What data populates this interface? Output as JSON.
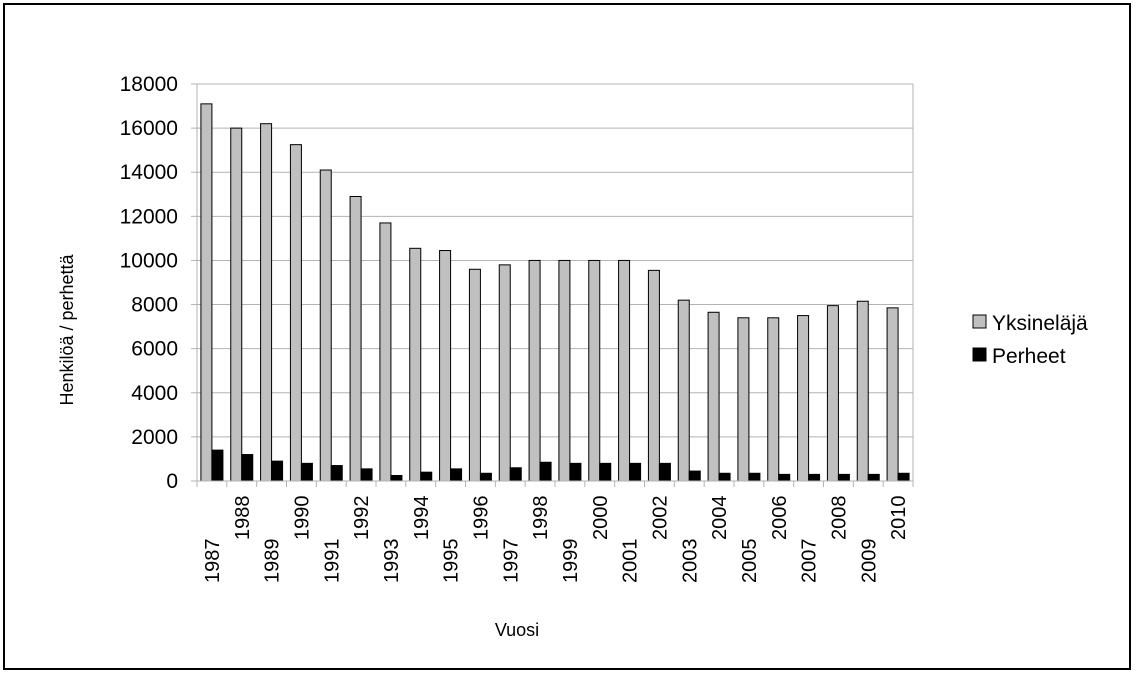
{
  "chart_data": {
    "type": "bar",
    "title": "",
    "xlabel": "Vuosi",
    "ylabel": "Henkilöä / perhettä",
    "categories": [
      "1987",
      "1988",
      "1989",
      "1990",
      "1991",
      "1992",
      "1993",
      "1994",
      "1995",
      "1996",
      "1997",
      "1998",
      "1999",
      "2000",
      "2001",
      "2002",
      "2003",
      "2004",
      "2005",
      "2006",
      "2007",
      "2008",
      "2009",
      "2010"
    ],
    "series": [
      {
        "name": "Yksineläjä",
        "color": "#c0c0c0",
        "values": [
          17100,
          16000,
          16200,
          15250,
          14100,
          12900,
          11700,
          10550,
          10450,
          9600,
          9800,
          10000,
          10000,
          10000,
          10000,
          9550,
          8200,
          7650,
          7400,
          7400,
          7500,
          7950,
          8150,
          7850
        ]
      },
      {
        "name": "Perheet",
        "color": "#000000",
        "values": [
          1400,
          1200,
          900,
          800,
          700,
          550,
          250,
          400,
          550,
          350,
          600,
          850,
          800,
          800,
          800,
          800,
          450,
          350,
          350,
          300,
          300,
          300,
          300,
          350
        ]
      }
    ],
    "ylim": [
      0,
      18000
    ],
    "yticks": [
      "0",
      "2000",
      "4000",
      "6000",
      "8000",
      "10000",
      "12000",
      "14000",
      "16000",
      "18000"
    ],
    "grid": true,
    "legend_position": "right"
  }
}
